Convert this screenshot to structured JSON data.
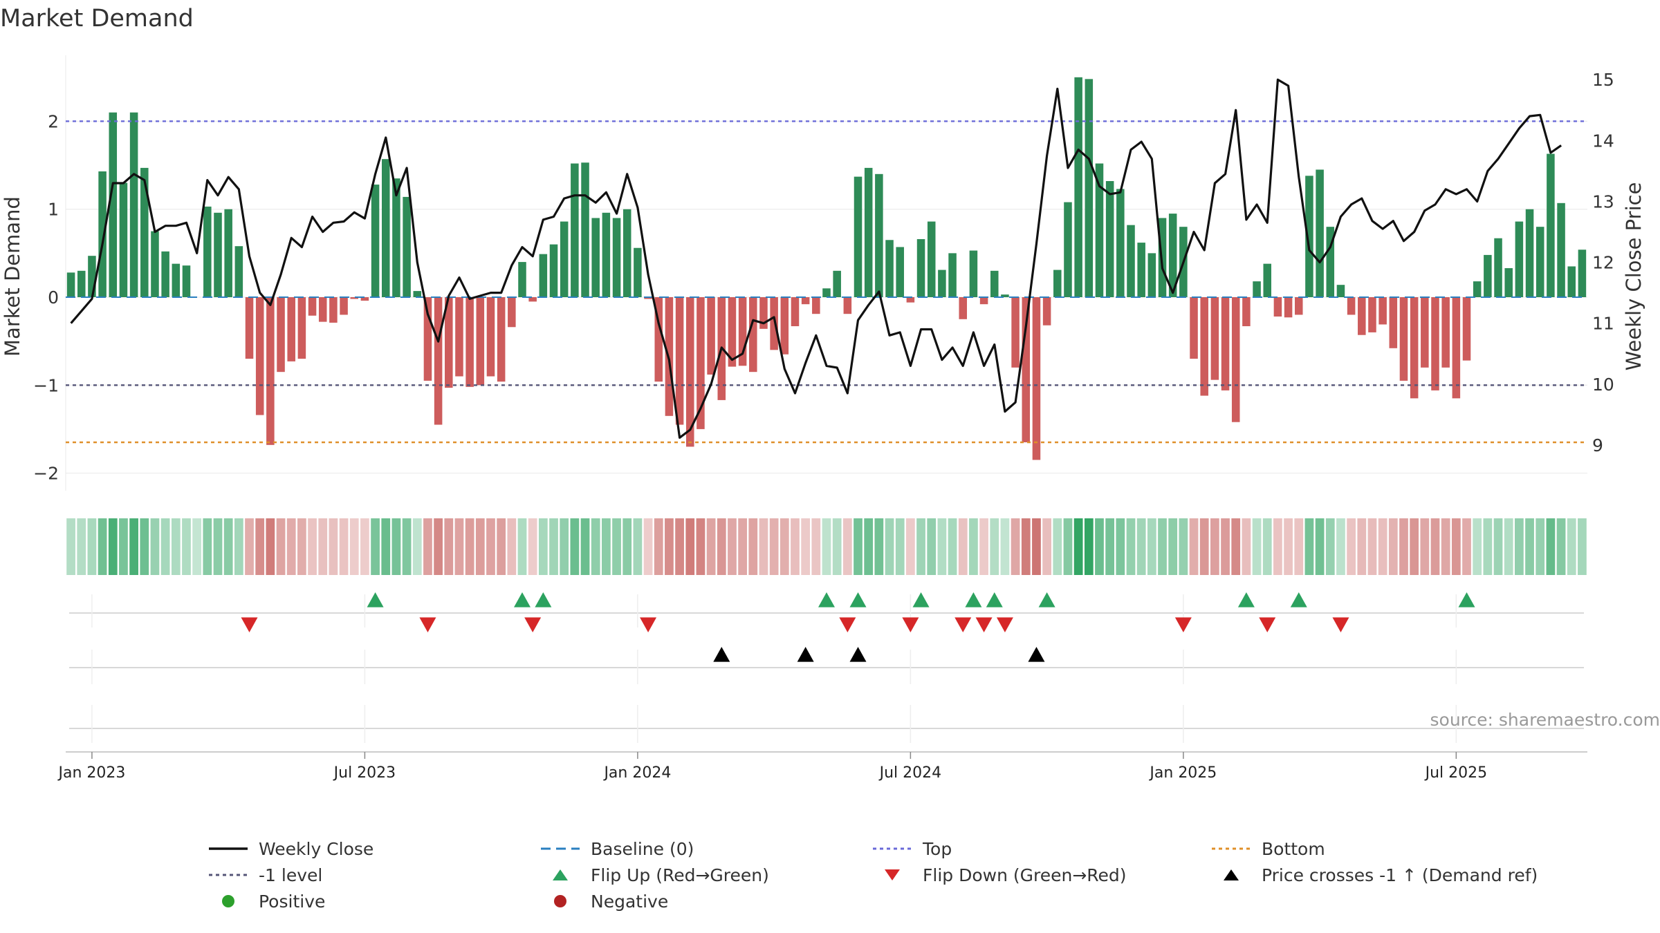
{
  "chart_data": {
    "type": "bar",
    "title": "Market Demand",
    "ylabel": "Market Demand",
    "y2label": "Weekly Close Price",
    "ylim": [
      -2.2,
      2.75
    ],
    "y2lim": [
      8.25,
      15.4
    ],
    "yticks": [
      -2,
      -1,
      0,
      1,
      2
    ],
    "yticklabels": [
      "−2",
      "−1",
      "0",
      "1",
      "2"
    ],
    "y2ticks": [
      9,
      10,
      11,
      12,
      13,
      14,
      15
    ],
    "x_start": "2022-12-19",
    "x_interval_days": 7,
    "xticks": [
      {
        "label": "Jan 2023",
        "week": 2
      },
      {
        "label": "Jul 2023",
        "week": 28
      },
      {
        "label": "Jan 2024",
        "week": 54
      },
      {
        "label": "Jul 2024",
        "week": 80
      },
      {
        "label": "Jan 2025",
        "week": 106
      },
      {
        "label": "Jul 2025",
        "week": 132
      }
    ],
    "reference_lines": [
      {
        "name": "Top",
        "value": 2.0,
        "color": "#6a6ad8"
      },
      {
        "name": "-1 level",
        "value": -1.0,
        "color": "#555577"
      },
      {
        "name": "Bottom",
        "value": -1.65,
        "color": "#e0902a"
      },
      {
        "name": "Baseline (0)",
        "value": 0.0,
        "color": "#2a7fc0"
      }
    ],
    "demand": [
      0.28,
      0.3,
      0.47,
      1.43,
      2.1,
      1.3,
      2.1,
      1.47,
      0.75,
      0.52,
      0.38,
      0.36,
      0.0,
      1.03,
      0.96,
      1.0,
      0.58,
      -0.7,
      -1.34,
      -1.68,
      -0.85,
      -0.73,
      -0.7,
      -0.21,
      -0.28,
      -0.29,
      -0.2,
      -0.02,
      -0.04,
      1.28,
      1.57,
      1.35,
      1.14,
      0.07,
      -0.95,
      -1.45,
      -1.03,
      -0.9,
      -1.02,
      -1.0,
      -0.9,
      -0.96,
      -0.34,
      0.4,
      -0.05,
      0.49,
      0.6,
      0.86,
      1.52,
      1.53,
      0.9,
      0.96,
      0.9,
      1.0,
      0.56,
      -0.02,
      -0.96,
      -1.35,
      -1.45,
      -1.7,
      -1.5,
      -0.88,
      -1.17,
      -0.79,
      -0.78,
      -0.85,
      -0.36,
      -0.6,
      -0.65,
      -0.33,
      -0.08,
      -0.19,
      0.1,
      0.3,
      -0.19,
      1.37,
      1.47,
      1.4,
      0.65,
      0.57,
      -0.06,
      0.66,
      0.86,
      0.31,
      0.5,
      -0.25,
      0.53,
      -0.08,
      0.3,
      0.03,
      -0.8,
      -1.65,
      -1.85,
      -0.32,
      0.31,
      1.08,
      2.5,
      2.48,
      1.52,
      1.32,
      1.23,
      0.82,
      0.62,
      0.5,
      0.9,
      0.95,
      0.8,
      -0.7,
      -1.12,
      -0.94,
      -1.06,
      -1.42,
      -0.33,
      0.18,
      0.38,
      -0.22,
      -0.23,
      -0.2,
      1.38,
      1.45,
      0.8,
      0.14,
      -0.2,
      -0.43,
      -0.4,
      -0.31,
      -0.58,
      -0.95,
      -1.15,
      -0.8,
      -1.06,
      -0.8,
      -1.15,
      -0.72,
      0.18,
      0.48,
      0.67,
      0.33,
      0.86,
      1.0,
      0.8,
      1.63,
      1.07,
      0.35,
      0.54
    ],
    "price": [
      11.0,
      11.2,
      11.4,
      12.3,
      13.3,
      13.3,
      13.45,
      13.35,
      12.5,
      12.6,
      12.6,
      12.65,
      12.15,
      13.35,
      13.1,
      13.4,
      13.2,
      12.1,
      11.5,
      11.3,
      11.8,
      12.4,
      12.25,
      12.75,
      12.5,
      12.65,
      12.67,
      12.82,
      12.72,
      13.45,
      14.05,
      13.1,
      13.55,
      12.0,
      11.15,
      10.7,
      11.45,
      11.75,
      11.4,
      11.45,
      11.5,
      11.5,
      11.95,
      12.25,
      12.1,
      12.7,
      12.75,
      13.05,
      13.1,
      13.1,
      12.98,
      13.15,
      12.8,
      13.45,
      12.9,
      11.8,
      11.0,
      10.4,
      9.12,
      9.25,
      9.6,
      10.0,
      10.6,
      10.4,
      10.5,
      11.05,
      11.0,
      11.1,
      10.25,
      9.85,
      10.35,
      10.8,
      10.3,
      10.27,
      9.85,
      11.05,
      11.3,
      11.52,
      10.8,
      10.85,
      10.3,
      10.9,
      10.9,
      10.4,
      10.6,
      10.3,
      10.85,
      10.3,
      10.65,
      9.55,
      9.7,
      10.95,
      12.3,
      13.75,
      14.85,
      13.55,
      13.85,
      13.7,
      13.25,
      13.12,
      13.15,
      13.85,
      13.98,
      13.7,
      11.9,
      11.5,
      12.0,
      12.5,
      12.2,
      13.3,
      13.45,
      14.5,
      12.7,
      12.95,
      12.65,
      15.0,
      14.9,
      13.4,
      12.2,
      12.0,
      12.25,
      12.75,
      12.95,
      13.05,
      12.68,
      12.55,
      12.68,
      12.35,
      12.5,
      12.85,
      12.95,
      13.2,
      13.12,
      13.2,
      13.0,
      13.5,
      13.7,
      13.95,
      14.2,
      14.4,
      14.42,
      13.8,
      13.92
    ],
    "flip_up_weeks": [
      29,
      43,
      45,
      72,
      75,
      81,
      86,
      88,
      93,
      112,
      117,
      133
    ],
    "flip_down_weeks": [
      17,
      34,
      44,
      55,
      74,
      80,
      85,
      87,
      89,
      106,
      114,
      121
    ],
    "price_cross_weeks": [
      62,
      70,
      75,
      92
    ],
    "source_text": "source: sharemaestro.com"
  },
  "legend": [
    {
      "label": "Weekly Close",
      "symbol": "line-solid",
      "color": "#111111"
    },
    {
      "label": "Baseline (0)",
      "symbol": "line-dashed",
      "color": "#2a7fc0"
    },
    {
      "label": "Top",
      "symbol": "line-dotted",
      "color": "#6a6ad8"
    },
    {
      "label": "Bottom",
      "symbol": "line-dotted",
      "color": "#e0902a"
    },
    {
      "label": "-1 level",
      "symbol": "line-dotted",
      "color": "#555577"
    },
    {
      "label": "Flip Up (Red→Green)",
      "symbol": "triangle-up",
      "color": "#2ca25f"
    },
    {
      "label": "Flip Down (Green→Red)",
      "symbol": "triangle-down",
      "color": "#d62728"
    },
    {
      "label": "Price crosses -1 ↑ (Demand ref)",
      "symbol": "triangle-up",
      "color": "#000000"
    },
    {
      "label": "Positive",
      "symbol": "circle",
      "color": "#2ca02c"
    },
    {
      "label": "Negative",
      "symbol": "circle",
      "color": "#b22222"
    }
  ],
  "colors": {
    "positive_bar": "#2e8b57",
    "negative_bar": "#cd5c5c",
    "price_line": "#111111",
    "strip_positive": "#2ca25f",
    "strip_negative": "#c0504d"
  }
}
